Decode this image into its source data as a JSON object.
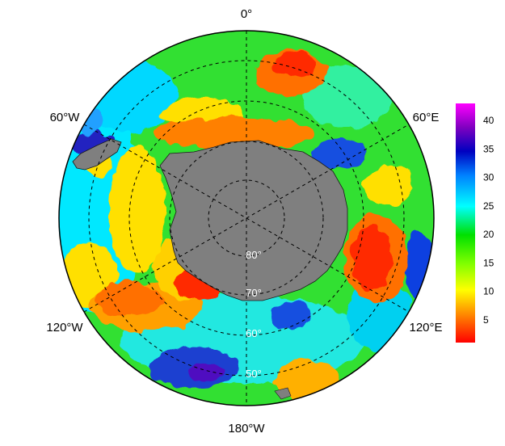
{
  "map": {
    "projection": "south polar stereographic",
    "land_color": "#7f7f7f",
    "longitude_labels": {
      "top": "0°",
      "upper_left": "60°W",
      "upper_right": "60°E",
      "lower_left": "120°W",
      "lower_right": "120°E",
      "bottom": "180°W"
    },
    "latitude_labels": [
      "80°",
      "70°",
      "60°",
      "50°"
    ]
  },
  "colorbar": {
    "ticks": [
      "5",
      "10",
      "15",
      "20",
      "25",
      "30",
      "35",
      "40"
    ],
    "range": [
      1,
      43
    ],
    "colors": [
      "#ff0000",
      "#ff8000",
      "#ffff00",
      "#80ff00",
      "#00e000",
      "#00ffff",
      "#0080ff",
      "#0000c0",
      "#8000c0",
      "#ff00ff"
    ]
  }
}
